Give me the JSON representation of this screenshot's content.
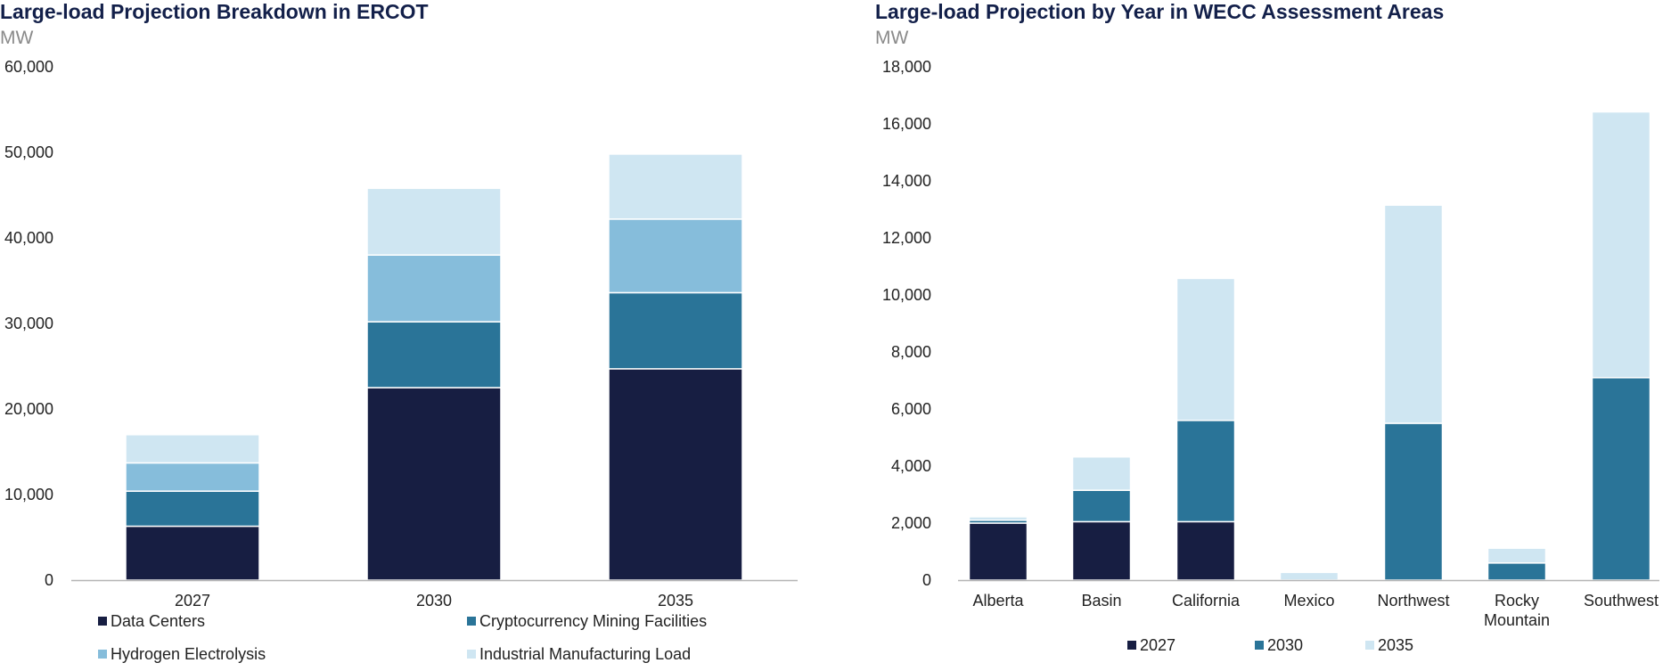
{
  "chart_data": [
    {
      "type": "bar",
      "stacked": true,
      "title": "Large-load Projection Breakdown in ERCOT",
      "unit": "MW",
      "ylim": [
        0,
        60000
      ],
      "yticks": [
        0,
        10000,
        20000,
        30000,
        40000,
        50000,
        60000
      ],
      "ytick_labels": [
        "0",
        "10,000",
        "20,000",
        "30,000",
        "40,000",
        "50,000",
        "60,000"
      ],
      "categories": [
        "2027",
        "2030",
        "2035"
      ],
      "series": [
        {
          "name": "Data Centers",
          "color": "#171e42",
          "values": [
            6300,
            22500,
            24700
          ]
        },
        {
          "name": "Cryptocurrency Mining Facilities",
          "color": "#2a7498",
          "values": [
            4100,
            7700,
            8900
          ]
        },
        {
          "name": "Hydrogen Electrolysis",
          "color": "#86bddb",
          "values": [
            3300,
            7800,
            8600
          ]
        },
        {
          "name": "Industrial Manufacturing Load",
          "color": "#cfe6f2",
          "values": [
            3300,
            7800,
            7600
          ]
        }
      ],
      "legend_position": "bottom"
    },
    {
      "type": "bar",
      "stacked": true,
      "title": "Large-load Projection by Year in WECC Assessment Areas",
      "unit": "MW",
      "ylim": [
        0,
        18000
      ],
      "yticks": [
        0,
        2000,
        4000,
        6000,
        8000,
        10000,
        12000,
        14000,
        16000,
        18000
      ],
      "ytick_labels": [
        "0",
        "2,000",
        "4,000",
        "6,000",
        "8,000",
        "10,000",
        "12,000",
        "14,000",
        "16,000",
        "18,000"
      ],
      "categories": [
        [
          "Alberta"
        ],
        [
          "Basin"
        ],
        [
          "California"
        ],
        [
          "Mexico"
        ],
        [
          "Northwest"
        ],
        [
          "Rocky",
          "Mountain"
        ],
        [
          "Southwest"
        ]
      ],
      "series": [
        {
          "name": "2027",
          "color": "#171e42",
          "values": [
            2000,
            2050,
            2050,
            0,
            0,
            0,
            0
          ]
        },
        {
          "name": "2030",
          "color": "#2a7498",
          "values": [
            100,
            1100,
            3550,
            0,
            5500,
            600,
            7100
          ]
        },
        {
          "name": "2035",
          "color": "#cfe6f2",
          "values": [
            120,
            1170,
            4980,
            270,
            7650,
            520,
            9320
          ]
        }
      ],
      "legend_position": "bottom"
    }
  ]
}
